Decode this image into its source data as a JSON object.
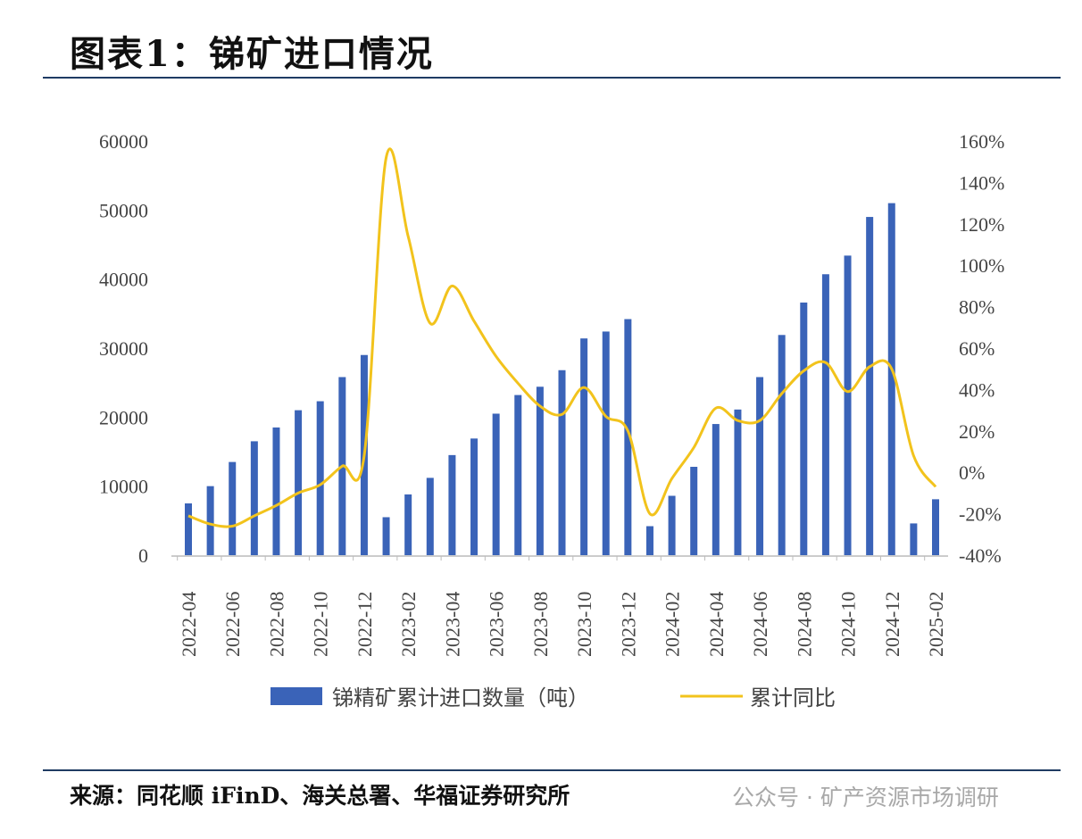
{
  "title": "图表1：锑矿进口情况",
  "source": "来源：同花顺 iFinD、海关总署、华福证券研究所",
  "watermark": "公众号 · 矿产资源市场调研",
  "chart_data": {
    "type": "bar+line",
    "categories": [
      "2022-04",
      "2022-05",
      "2022-06",
      "2022-07",
      "2022-08",
      "2022-09",
      "2022-10",
      "2022-11",
      "2022-12",
      "2023-01",
      "2023-02",
      "2023-03",
      "2023-04",
      "2023-05",
      "2023-06",
      "2023-07",
      "2023-08",
      "2023-09",
      "2023-10",
      "2023-11",
      "2023-12",
      "2024-01",
      "2024-02",
      "2024-03",
      "2024-04",
      "2024-05",
      "2024-06",
      "2024-07",
      "2024-08",
      "2024-09",
      "2024-10",
      "2024-11",
      "2024-12",
      "2025-01",
      "2025-02"
    ],
    "x_tick_labels": [
      "2022-04",
      "2022-06",
      "2022-08",
      "2022-10",
      "2022-12",
      "2023-02",
      "2023-04",
      "2023-06",
      "2023-08",
      "2023-10",
      "2023-12",
      "2024-02",
      "2024-04",
      "2024-06",
      "2024-08",
      "2024-10",
      "2024-12",
      "2025-02"
    ],
    "series": [
      {
        "name": "锑精矿累计进口数量（吨）",
        "type": "bar",
        "axis": "left",
        "color": "#3a63b8",
        "values": [
          7500,
          10000,
          13500,
          16500,
          18500,
          21000,
          22300,
          25800,
          29000,
          5500,
          8800,
          11200,
          14500,
          16900,
          20500,
          23200,
          24400,
          26800,
          31400,
          32400,
          34200,
          4200,
          8600,
          12800,
          19000,
          21100,
          25800,
          31900,
          36600,
          40700,
          43400,
          49000,
          51000,
          4600,
          8100
        ]
      },
      {
        "name": "累计同比",
        "type": "line",
        "axis": "right",
        "color": "#f2c31c",
        "values": [
          -21,
          -25,
          -26,
          -21,
          -16,
          -10,
          -6,
          3,
          8,
          152,
          114,
          72,
          90,
          73,
          56,
          43,
          32,
          28,
          41,
          27,
          20,
          -20,
          -3,
          12,
          31,
          25,
          25,
          38,
          49,
          53,
          39,
          51,
          50,
          8,
          -7
        ]
      }
    ],
    "left_axis": {
      "ylim": [
        0,
        60000
      ],
      "ticks": [
        "0",
        "10000",
        "20000",
        "30000",
        "40000",
        "50000",
        "60000"
      ]
    },
    "right_axis": {
      "ylim": [
        -40,
        160
      ],
      "ticks": [
        "-40%",
        "-20%",
        "0%",
        "20%",
        "40%",
        "60%",
        "80%",
        "100%",
        "120%",
        "140%",
        "160%"
      ]
    },
    "legend_position": "bottom",
    "grid": false
  }
}
